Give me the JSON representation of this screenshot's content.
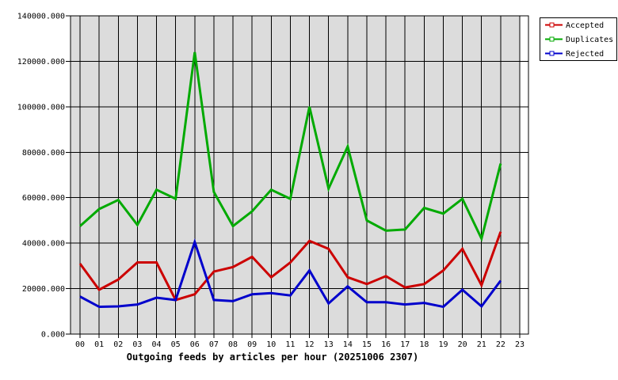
{
  "chart_data": {
    "type": "line",
    "title": "Outgoing feeds by articles per hour (20251006 2307)",
    "categories": [
      "00",
      "01",
      "02",
      "03",
      "04",
      "05",
      "06",
      "07",
      "08",
      "09",
      "10",
      "11",
      "12",
      "13",
      "14",
      "15",
      "16",
      "17",
      "18",
      "19",
      "20",
      "21",
      "22",
      "23"
    ],
    "ylim": [
      0,
      140000
    ],
    "ytick_step": 20000,
    "ytick_labels": [
      "0.000",
      "20000.000",
      "40000.000",
      "60000.000",
      "80000.000",
      "100000.000",
      "120000.000",
      "140000.000"
    ],
    "grid": "on",
    "plot_bg": "#dcdcdc",
    "grid_color": "#000000",
    "legend_position": "top-right-outside",
    "series": [
      {
        "name": "Accepted",
        "color": "#cc0000",
        "values": [
          31000,
          19500,
          24000,
          31500,
          31500,
          15000,
          17500,
          27500,
          29500,
          34000,
          25000,
          31500,
          41000,
          37500,
          25000,
          22000,
          25500,
          20500,
          22000,
          28000,
          37500,
          21500,
          45000,
          null
        ]
      },
      {
        "name": "Duplicates",
        "color": "#00aa00",
        "values": [
          47500,
          55000,
          59000,
          48000,
          63500,
          59500,
          124000,
          62500,
          47500,
          54000,
          63500,
          59500,
          100000,
          64000,
          82500,
          50000,
          45500,
          46000,
          55500,
          53000,
          59500,
          42000,
          75000,
          null
        ]
      },
      {
        "name": "Rejected",
        "color": "#0000cc",
        "values": [
          16500,
          12000,
          12200,
          13000,
          16000,
          15000,
          40500,
          15000,
          14500,
          17500,
          18000,
          17000,
          28000,
          13500,
          21000,
          14000,
          14000,
          13000,
          13700,
          12000,
          19500,
          12200,
          23500,
          null
        ]
      }
    ]
  }
}
